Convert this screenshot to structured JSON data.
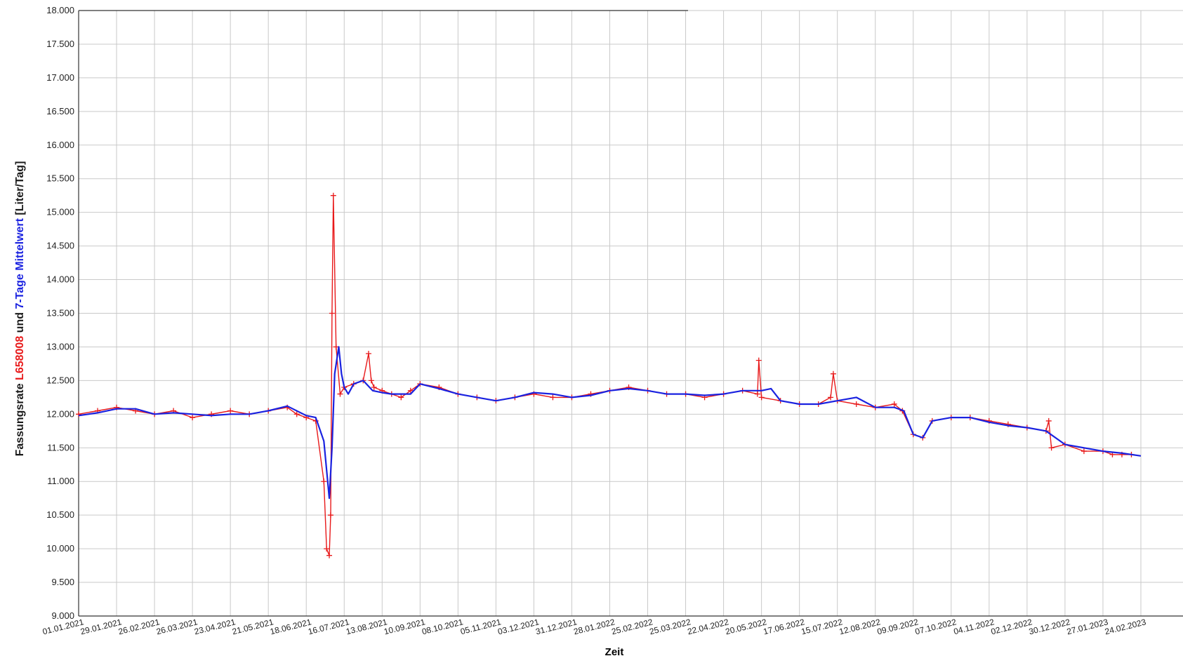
{
  "chart_data": {
    "type": "line",
    "ylabel_parts": [
      {
        "text": "Fassungsrate ",
        "color": "#1a1a1a"
      },
      {
        "text": "L658008",
        "color": "#e8191a"
      },
      {
        "text": " und ",
        "color": "#1a1a1a"
      },
      {
        "text": "7-Tage Mittelwert",
        "color": "#1a22e0"
      },
      {
        "text": " [Liter/Tag]",
        "color": "#1a1a1a"
      }
    ],
    "xlabel": "Zeit",
    "ylim": [
      9000,
      18000
    ],
    "yticks": [
      9000,
      9500,
      10000,
      10500,
      11000,
      11500,
      12000,
      12500,
      13000,
      13500,
      14000,
      14500,
      15000,
      15500,
      16000,
      16500,
      17000,
      17500,
      18000
    ],
    "ytick_labels": [
      "9.000",
      "9.500",
      "10.000",
      "10.500",
      "11.000",
      "11.500",
      "12.000",
      "12.500",
      "13.000",
      "13.500",
      "14.000",
      "14.500",
      "15.000",
      "15.500",
      "16.000",
      "16.500",
      "17.000",
      "17.500",
      "18.000"
    ],
    "xticks": [
      "01.01.2021",
      "29.01.2021",
      "26.02.2021",
      "26.03.2021",
      "23.04.2021",
      "21.05.2021",
      "18.06.2021",
      "16.07.2021",
      "13.08.2021",
      "10.09.2021",
      "08.10.2021",
      "05.11.2021",
      "03.12.2021",
      "31.12.2021",
      "28.01.2022",
      "25.02.2022",
      "25.03.2022",
      "22.04.2022",
      "20.05.2022",
      "17.06.2022",
      "15.07.2022",
      "12.08.2022",
      "09.09.2022",
      "07.10.2022",
      "04.11.2022",
      "02.12.2022",
      "30.12.2022",
      "27.01.2023",
      "24.02.2023"
    ],
    "series": [
      {
        "name": "L658008",
        "color": "#e8191a",
        "marker": "plus",
        "x": [
          "01.01.2021",
          "15.01.2021",
          "29.01.2021",
          "12.02.2021",
          "26.02.2021",
          "12.03.2021",
          "26.03.2021",
          "09.04.2021",
          "23.04.2021",
          "07.05.2021",
          "21.05.2021",
          "04.06.2021",
          "11.06.2021",
          "18.06.2021",
          "25.06.2021",
          "01.07.2021",
          "03.07.2021",
          "05.07.2021",
          "06.07.2021",
          "07.07.2021",
          "08.07.2021",
          "10.07.2021",
          "13.07.2021",
          "16.07.2021",
          "23.07.2021",
          "30.07.2021",
          "03.08.2021",
          "05.08.2021",
          "07.08.2021",
          "13.08.2021",
          "20.08.2021",
          "27.08.2021",
          "03.09.2021",
          "10.09.2021",
          "24.09.2021",
          "08.10.2021",
          "22.10.2021",
          "05.11.2021",
          "19.11.2021",
          "03.12.2021",
          "17.12.2021",
          "31.12.2021",
          "14.01.2022",
          "28.01.2022",
          "11.02.2022",
          "25.02.2022",
          "11.03.2022",
          "25.03.2022",
          "08.04.2022",
          "22.04.2022",
          "06.05.2022",
          "17.05.2022",
          "18.05.2022",
          "20.05.2022",
          "03.06.2022",
          "17.06.2022",
          "01.07.2022",
          "10.07.2022",
          "12.07.2022",
          "15.07.2022",
          "29.07.2022",
          "12.08.2022",
          "26.08.2022",
          "01.09.2022",
          "09.09.2022",
          "16.09.2022",
          "23.09.2022",
          "07.10.2022",
          "21.10.2022",
          "04.11.2022",
          "18.11.2022",
          "02.12.2022",
          "16.12.2022",
          "18.12.2022",
          "20.12.2022",
          "30.12.2022",
          "13.01.2023",
          "27.01.2023",
          "03.02.2023",
          "10.02.2023",
          "17.02.2023"
        ],
        "values": [
          12000,
          12050,
          12100,
          12050,
          12000,
          12050,
          11950,
          12000,
          12050,
          12000,
          12050,
          12100,
          12000,
          11950,
          11900,
          11000,
          10000,
          9900,
          10500,
          13500,
          15250,
          13000,
          12300,
          12400,
          12450,
          12500,
          12900,
          12500,
          12400,
          12350,
          12300,
          12250,
          12350,
          12450,
          12400,
          12300,
          12250,
          12200,
          12250,
          12300,
          12250,
          12250,
          12300,
          12350,
          12400,
          12350,
          12300,
          12300,
          12250,
          12300,
          12350,
          12300,
          12800,
          12250,
          12200,
          12150,
          12150,
          12250,
          12600,
          12200,
          12150,
          12100,
          12150,
          12050,
          11700,
          11650,
          11900,
          11950,
          11950,
          11900,
          11850,
          11800,
          11750,
          11900,
          11500,
          11550,
          11450,
          11450,
          11400,
          11400,
          11400
        ]
      },
      {
        "name": "7-Tage Mittelwert",
        "color": "#1a22e0",
        "marker": "none",
        "x": [
          "01.01.2021",
          "15.01.2021",
          "29.01.2021",
          "12.02.2021",
          "26.02.2021",
          "12.03.2021",
          "26.03.2021",
          "09.04.2021",
          "23.04.2021",
          "07.05.2021",
          "21.05.2021",
          "04.06.2021",
          "18.06.2021",
          "25.06.2021",
          "01.07.2021",
          "05.07.2021",
          "07.07.2021",
          "09.07.2021",
          "12.07.2021",
          "14.07.2021",
          "16.07.2021",
          "19.07.2021",
          "23.07.2021",
          "30.07.2021",
          "06.08.2021",
          "13.08.2021",
          "20.08.2021",
          "03.09.2021",
          "10.09.2021",
          "24.09.2021",
          "08.10.2021",
          "22.10.2021",
          "05.11.2021",
          "19.11.2021",
          "03.12.2021",
          "17.12.2021",
          "31.12.2021",
          "14.01.2022",
          "28.01.2022",
          "11.02.2022",
          "25.02.2022",
          "11.03.2022",
          "25.03.2022",
          "08.04.2022",
          "22.04.2022",
          "06.05.2022",
          "20.05.2022",
          "27.05.2022",
          "03.06.2022",
          "17.06.2022",
          "01.07.2022",
          "15.07.2022",
          "29.07.2022",
          "12.08.2022",
          "26.08.2022",
          "02.09.2022",
          "09.09.2022",
          "16.09.2022",
          "23.09.2022",
          "07.10.2022",
          "21.10.2022",
          "04.11.2022",
          "18.11.2022",
          "02.12.2022",
          "16.12.2022",
          "30.12.2022",
          "13.01.2023",
          "27.01.2023",
          "10.02.2023",
          "24.02.2023"
        ],
        "values": [
          11980,
          12020,
          12080,
          12080,
          12000,
          12020,
          12000,
          11980,
          12000,
          12000,
          12050,
          12120,
          11980,
          11950,
          11600,
          10750,
          11500,
          12600,
          13000,
          12600,
          12400,
          12300,
          12450,
          12500,
          12350,
          12320,
          12300,
          12300,
          12450,
          12380,
          12300,
          12250,
          12200,
          12250,
          12320,
          12300,
          12250,
          12280,
          12350,
          12380,
          12350,
          12300,
          12300,
          12280,
          12300,
          12350,
          12350,
          12380,
          12200,
          12150,
          12150,
          12200,
          12250,
          12100,
          12100,
          12050,
          11700,
          11650,
          11900,
          11950,
          11950,
          11880,
          11830,
          11800,
          11750,
          11550,
          11500,
          11450,
          11420,
          11380
        ]
      }
    ]
  }
}
